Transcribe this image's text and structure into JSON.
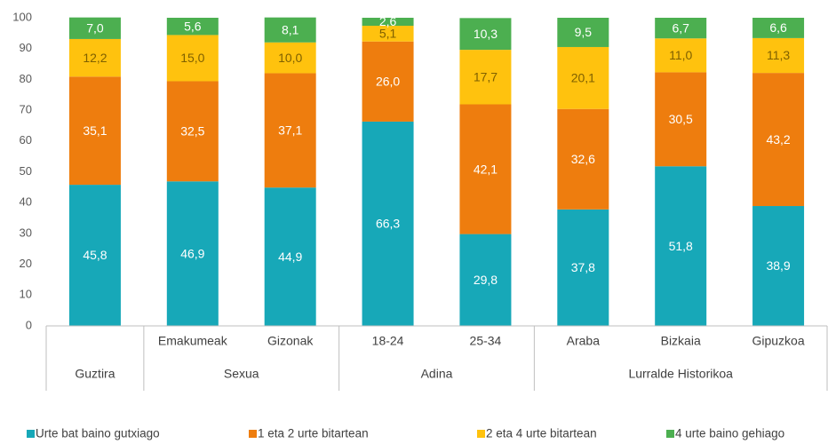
{
  "chart_data": {
    "type": "stacked_bar",
    "groups": [
      {
        "label": "Guztira",
        "categories": [
          null
        ]
      },
      {
        "label": "Sexua",
        "categories": [
          "Emakumeak",
          "Gizonak"
        ]
      },
      {
        "label": "Adina",
        "categories": [
          "18-24",
          "25-34"
        ]
      },
      {
        "label": "Lurralde Historikoa",
        "categories": [
          "Araba",
          "Bizkaia",
          "Gipuzkoa"
        ]
      }
    ],
    "series": [
      {
        "name": "Urte bat baino gutxiago",
        "color": "#17a8b8",
        "values": [
          45.8,
          46.9,
          44.9,
          66.3,
          29.8,
          37.8,
          51.8,
          38.9
        ],
        "value_labels": [
          "45,8",
          "46,9",
          "44,9",
          "66,3",
          "29,8",
          "37,8",
          "51,8",
          "38,9"
        ]
      },
      {
        "name": "1 eta 2 urte bitartean",
        "color": "#ee7d0e",
        "values": [
          35.1,
          32.5,
          37.1,
          26.0,
          42.1,
          32.6,
          30.5,
          43.2
        ],
        "value_labels": [
          "35,1",
          "32,5",
          "37,1",
          "26,0",
          "42,1",
          "32,6",
          "30,5",
          "43,2"
        ]
      },
      {
        "name": "2 eta 4 urte bitartean",
        "color": "#ffc20e",
        "values": [
          12.2,
          15.0,
          10.0,
          5.1,
          17.7,
          20.1,
          11.0,
          11.3
        ],
        "value_labels": [
          "12,2",
          "15,0",
          "10,0",
          "5,1",
          "17,7",
          "20,1",
          "11,0",
          "11,3"
        ]
      },
      {
        "name": "4 urte baino gehiago",
        "color": "#4caf50",
        "values": [
          7.0,
          5.6,
          8.1,
          2.6,
          10.3,
          9.5,
          6.7,
          6.6
        ],
        "value_labels": [
          "7,0",
          "5,6",
          "8,1",
          "2,6",
          "10,3",
          "9,5",
          "6,7",
          "6,6"
        ]
      }
    ],
    "ylim": [
      0,
      100
    ],
    "yticks": [
      0,
      10,
      20,
      30,
      40,
      50,
      60,
      70,
      80,
      90,
      100
    ],
    "legend": "bottom"
  }
}
